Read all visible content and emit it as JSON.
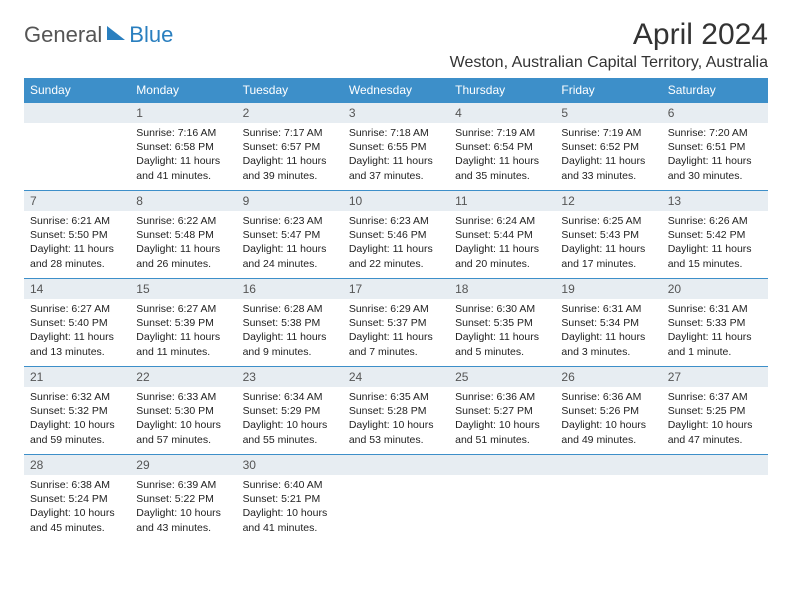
{
  "logo": {
    "text1": "General",
    "text2": "Blue"
  },
  "title": "April 2024",
  "location": "Weston, Australian Capital Territory, Australia",
  "colors": {
    "header_bg": "#3d8fc9",
    "header_fg": "#ffffff",
    "daynum_bg": "#e7edf2",
    "border": "#3d8fc9",
    "logo_blue": "#2a7fbf"
  },
  "weekdays": [
    "Sunday",
    "Monday",
    "Tuesday",
    "Wednesday",
    "Thursday",
    "Friday",
    "Saturday"
  ],
  "weeks": [
    [
      null,
      {
        "n": "1",
        "sunrise": "7:16 AM",
        "sunset": "6:58 PM",
        "daylight": "11 hours and 41 minutes."
      },
      {
        "n": "2",
        "sunrise": "7:17 AM",
        "sunset": "6:57 PM",
        "daylight": "11 hours and 39 minutes."
      },
      {
        "n": "3",
        "sunrise": "7:18 AM",
        "sunset": "6:55 PM",
        "daylight": "11 hours and 37 minutes."
      },
      {
        "n": "4",
        "sunrise": "7:19 AM",
        "sunset": "6:54 PM",
        "daylight": "11 hours and 35 minutes."
      },
      {
        "n": "5",
        "sunrise": "7:19 AM",
        "sunset": "6:52 PM",
        "daylight": "11 hours and 33 minutes."
      },
      {
        "n": "6",
        "sunrise": "7:20 AM",
        "sunset": "6:51 PM",
        "daylight": "11 hours and 30 minutes."
      }
    ],
    [
      {
        "n": "7",
        "sunrise": "6:21 AM",
        "sunset": "5:50 PM",
        "daylight": "11 hours and 28 minutes."
      },
      {
        "n": "8",
        "sunrise": "6:22 AM",
        "sunset": "5:48 PM",
        "daylight": "11 hours and 26 minutes."
      },
      {
        "n": "9",
        "sunrise": "6:23 AM",
        "sunset": "5:47 PM",
        "daylight": "11 hours and 24 minutes."
      },
      {
        "n": "10",
        "sunrise": "6:23 AM",
        "sunset": "5:46 PM",
        "daylight": "11 hours and 22 minutes."
      },
      {
        "n": "11",
        "sunrise": "6:24 AM",
        "sunset": "5:44 PM",
        "daylight": "11 hours and 20 minutes."
      },
      {
        "n": "12",
        "sunrise": "6:25 AM",
        "sunset": "5:43 PM",
        "daylight": "11 hours and 17 minutes."
      },
      {
        "n": "13",
        "sunrise": "6:26 AM",
        "sunset": "5:42 PM",
        "daylight": "11 hours and 15 minutes."
      }
    ],
    [
      {
        "n": "14",
        "sunrise": "6:27 AM",
        "sunset": "5:40 PM",
        "daylight": "11 hours and 13 minutes."
      },
      {
        "n": "15",
        "sunrise": "6:27 AM",
        "sunset": "5:39 PM",
        "daylight": "11 hours and 11 minutes."
      },
      {
        "n": "16",
        "sunrise": "6:28 AM",
        "sunset": "5:38 PM",
        "daylight": "11 hours and 9 minutes."
      },
      {
        "n": "17",
        "sunrise": "6:29 AM",
        "sunset": "5:37 PM",
        "daylight": "11 hours and 7 minutes."
      },
      {
        "n": "18",
        "sunrise": "6:30 AM",
        "sunset": "5:35 PM",
        "daylight": "11 hours and 5 minutes."
      },
      {
        "n": "19",
        "sunrise": "6:31 AM",
        "sunset": "5:34 PM",
        "daylight": "11 hours and 3 minutes."
      },
      {
        "n": "20",
        "sunrise": "6:31 AM",
        "sunset": "5:33 PM",
        "daylight": "11 hours and 1 minute."
      }
    ],
    [
      {
        "n": "21",
        "sunrise": "6:32 AM",
        "sunset": "5:32 PM",
        "daylight": "10 hours and 59 minutes."
      },
      {
        "n": "22",
        "sunrise": "6:33 AM",
        "sunset": "5:30 PM",
        "daylight": "10 hours and 57 minutes."
      },
      {
        "n": "23",
        "sunrise": "6:34 AM",
        "sunset": "5:29 PM",
        "daylight": "10 hours and 55 minutes."
      },
      {
        "n": "24",
        "sunrise": "6:35 AM",
        "sunset": "5:28 PM",
        "daylight": "10 hours and 53 minutes."
      },
      {
        "n": "25",
        "sunrise": "6:36 AM",
        "sunset": "5:27 PM",
        "daylight": "10 hours and 51 minutes."
      },
      {
        "n": "26",
        "sunrise": "6:36 AM",
        "sunset": "5:26 PM",
        "daylight": "10 hours and 49 minutes."
      },
      {
        "n": "27",
        "sunrise": "6:37 AM",
        "sunset": "5:25 PM",
        "daylight": "10 hours and 47 minutes."
      }
    ],
    [
      {
        "n": "28",
        "sunrise": "6:38 AM",
        "sunset": "5:24 PM",
        "daylight": "10 hours and 45 minutes."
      },
      {
        "n": "29",
        "sunrise": "6:39 AM",
        "sunset": "5:22 PM",
        "daylight": "10 hours and 43 minutes."
      },
      {
        "n": "30",
        "sunrise": "6:40 AM",
        "sunset": "5:21 PM",
        "daylight": "10 hours and 41 minutes."
      },
      null,
      null,
      null,
      null
    ]
  ],
  "labels": {
    "sunrise": "Sunrise:",
    "sunset": "Sunset:",
    "daylight": "Daylight:"
  }
}
